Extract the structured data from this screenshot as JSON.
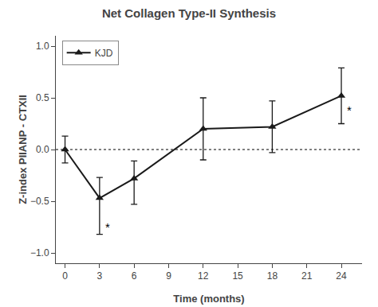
{
  "chart_data": {
    "type": "line",
    "title": "Net Collagen Type-II Synthesis",
    "xlabel": "Time (months)",
    "ylabel": "Z-index PIIANP - CTXII",
    "x": [
      0,
      3,
      6,
      12,
      18,
      24
    ],
    "series": [
      {
        "name": "KJD",
        "color": "#1a1a1a",
        "marker": "triangle-up",
        "line_style": "solid",
        "values": [
          0.0,
          -0.47,
          -0.28,
          0.2,
          0.22,
          0.52
        ],
        "error_low": [
          0.13,
          0.35,
          0.25,
          0.3,
          0.25,
          0.27
        ],
        "error_high": [
          0.13,
          0.2,
          0.17,
          0.3,
          0.25,
          0.27
        ]
      }
    ],
    "xlim": [
      -0.8,
      25.8
    ],
    "xticks": [
      0,
      3,
      6,
      9,
      12,
      15,
      18,
      21,
      24
    ],
    "ylim": [
      -1.1,
      1.1
    ],
    "yticks": [
      {
        "value": -1.0,
        "label": "−1.0"
      },
      {
        "value": -0.5,
        "label": "−0.5"
      },
      {
        "value": 0.0,
        "label": "0.0"
      },
      0.5,
      {
        "value": 1.0,
        "label": "1.0"
      }
    ],
    "hlines": [
      {
        "y": 0.0,
        "line_style": "dotted",
        "color": "#000000"
      }
    ],
    "annotations": [
      {
        "x": 3,
        "y": -0.75,
        "text": "*"
      },
      {
        "x": 24,
        "y": 0.38,
        "text": "*"
      }
    ],
    "legend": "upper left",
    "grid": false,
    "background_color": "#ffffff"
  }
}
